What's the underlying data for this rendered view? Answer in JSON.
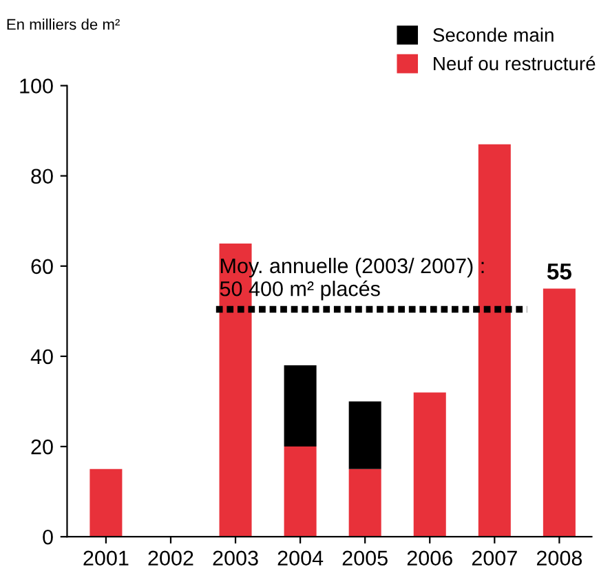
{
  "chart_data": {
    "type": "bar",
    "stacked": true,
    "ylabel": "En milliers de m²",
    "categories": [
      "2001",
      "2002",
      "2003",
      "2004",
      "2005",
      "2006",
      "2007",
      "2008"
    ],
    "series": [
      {
        "name": "Neuf ou restructuré",
        "color": "#e8313a",
        "values": [
          15,
          null,
          65,
          20,
          15,
          32,
          87,
          55
        ],
        "value_labels": [
          null,
          null,
          null,
          null,
          null,
          null,
          null,
          "55"
        ]
      },
      {
        "name": "Seconde main",
        "color": "#000000",
        "values": [
          null,
          null,
          null,
          18,
          15,
          null,
          null,
          null
        ]
      }
    ],
    "ylim": [
      0,
      100
    ],
    "yticks": [
      0,
      20,
      40,
      60,
      80,
      100
    ],
    "grid": false,
    "legend": "top right",
    "ref_lines": [
      {
        "axis": "y",
        "value": 50.4,
        "label": "Moy. annuelle (2003/ 2007) :\n50 400 m² placés",
        "color": "#000000",
        "line_style": "dotted"
      }
    ]
  }
}
